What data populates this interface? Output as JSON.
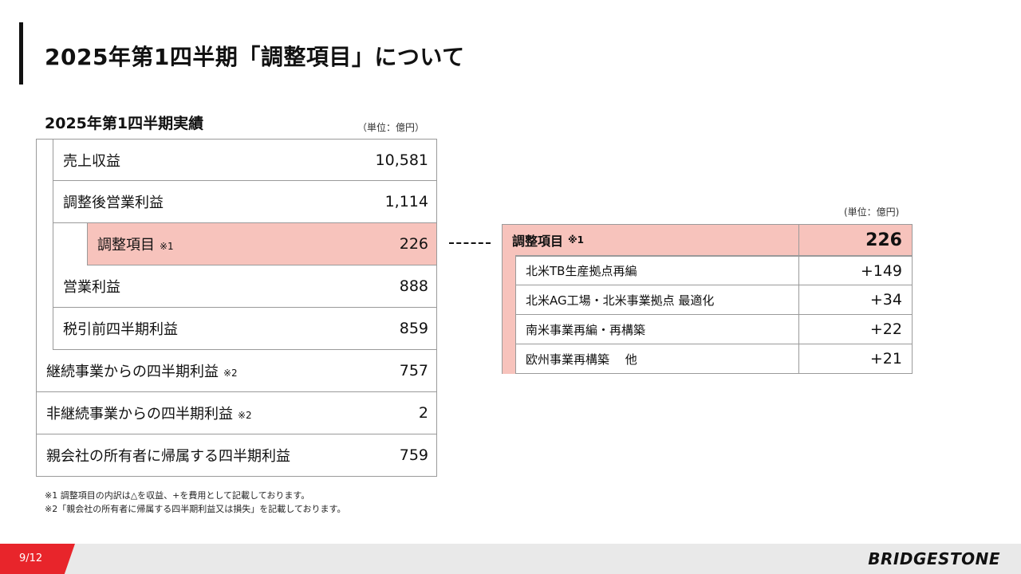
{
  "title": "2025年第1四半期「調整項目」について",
  "results": {
    "heading": "2025年第1四半期実績",
    "unit": "（単位：億円）",
    "rows": [
      {
        "label": "売上収益",
        "note": "",
        "value": "10,581"
      },
      {
        "label": "調整後営業利益",
        "note": "",
        "value": "1,114"
      },
      {
        "label": "調整項目",
        "note": "※1",
        "value": "226"
      },
      {
        "label": "営業利益",
        "note": "",
        "value": "888"
      },
      {
        "label": "税引前四半期利益",
        "note": "",
        "value": "859"
      },
      {
        "label": "継続事業からの四半期利益",
        "note": "※2",
        "value": "757"
      },
      {
        "label": "非継続事業からの四半期利益",
        "note": "※2",
        "value": "2"
      },
      {
        "label": "親会社の所有者に帰属する四半期利益",
        "note": "",
        "value": "759"
      }
    ]
  },
  "adjustments": {
    "unit": "(単位：億円)",
    "label": "調整項目",
    "note": "※1",
    "total": "226",
    "items": [
      {
        "label": "北米TB生産拠点再編",
        "value": "+149"
      },
      {
        "label": "北米AG工場・北米事業拠点 最適化",
        "value": "+34"
      },
      {
        "label": "南米事業再編・再構築",
        "value": "+22"
      },
      {
        "label": "欧州事業再構築　 他",
        "value": "+21"
      }
    ]
  },
  "footnotes": [
    "※1 調整項目の内訳は△を収益、+を費用として記載しております。",
    "※2「親会社の所有者に帰属する四半期利益又は損失」を記載しております。"
  ],
  "footer": {
    "page": "9/12",
    "brand": "BRIDGESTONE",
    "accent_color": "#e8252b"
  }
}
